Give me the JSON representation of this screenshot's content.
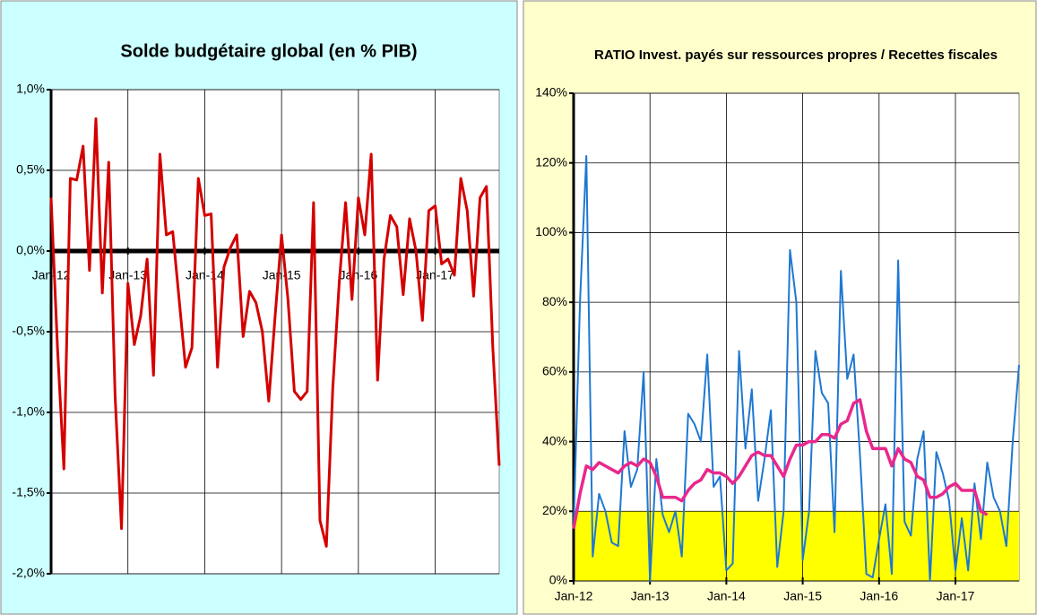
{
  "chart_data": [
    {
      "type": "line",
      "title": "Solde budgétaire global (en % PIB)",
      "categories": [
        "Jan-12",
        null,
        null,
        null,
        null,
        null,
        null,
        null,
        null,
        null,
        null,
        null,
        "Jan-13",
        null,
        null,
        null,
        null,
        null,
        null,
        null,
        null,
        null,
        null,
        null,
        "Jan-14",
        null,
        null,
        null,
        null,
        null,
        null,
        null,
        null,
        null,
        null,
        null,
        "Jan-15",
        null,
        null,
        null,
        null,
        null,
        null,
        null,
        null,
        null,
        null,
        null,
        "Jan-16",
        null,
        null,
        null,
        null,
        null,
        null,
        null,
        null,
        null,
        null,
        null,
        "Jan-17",
        null,
        null,
        null,
        null,
        null,
        null,
        null,
        null,
        null,
        null
      ],
      "series": [
        {
          "color": "#d40000",
          "values": [
            0.33,
            -0.6,
            -1.35,
            0.45,
            0.44,
            0.65,
            -0.12,
            0.82,
            -0.26,
            0.55,
            -0.9,
            -1.72,
            -0.2,
            -0.58,
            -0.4,
            -0.05,
            -0.77,
            0.6,
            0.1,
            0.12,
            -0.3,
            -0.72,
            -0.6,
            0.45,
            0.22,
            0.23,
            -0.72,
            -0.1,
            0.02,
            0.1,
            -0.53,
            -0.25,
            -0.32,
            -0.5,
            -0.93,
            -0.4,
            0.1,
            -0.3,
            -0.87,
            -0.92,
            -0.87,
            0.3,
            -1.67,
            -1.83,
            -0.85,
            -0.2,
            0.3,
            -0.3,
            0.33,
            0.1,
            0.6,
            -0.8,
            -0.05,
            0.22,
            0.15,
            -0.27,
            0.2,
            0.0,
            -0.43,
            0.25,
            0.28,
            -0.08,
            -0.05,
            -0.15,
            0.45,
            0.25,
            -0.28,
            0.33,
            0.4,
            -0.6,
            -1.33
          ]
        }
      ],
      "ylim": [
        -2,
        1
      ],
      "yticks": [
        {
          "value": -2,
          "label": "-2,0%"
        },
        {
          "value": -1.5,
          "label": "-1,5%"
        },
        {
          "value": -1,
          "label": "-1,0%"
        },
        {
          "value": -0.5,
          "label": "-0,5%"
        },
        {
          "value": 0,
          "label": "0,0%"
        },
        {
          "value": 0.5,
          "label": "0,5%"
        },
        {
          "value": 1,
          "label": "1,0%"
        }
      ],
      "grid": true,
      "background": "#ccffff"
    },
    {
      "type": "line",
      "title": "RATIO Invest. payés sur ressources propres / Recettes fiscales",
      "categories": [
        "Jan-12",
        null,
        null,
        null,
        null,
        null,
        null,
        null,
        null,
        null,
        null,
        null,
        "Jan-13",
        null,
        null,
        null,
        null,
        null,
        null,
        null,
        null,
        null,
        null,
        null,
        "Jan-14",
        null,
        null,
        null,
        null,
        null,
        null,
        null,
        null,
        null,
        null,
        null,
        "Jan-15",
        null,
        null,
        null,
        null,
        null,
        null,
        null,
        null,
        null,
        null,
        null,
        "Jan-16",
        null,
        null,
        null,
        null,
        null,
        null,
        null,
        null,
        null,
        null,
        null,
        "Jan-17",
        null,
        null,
        null,
        null,
        null,
        null,
        null,
        null,
        null,
        null
      ],
      "series": [
        {
          "color": "#1f78d2",
          "values": [
            15,
            80,
            122,
            7,
            25,
            20,
            11,
            10,
            43,
            27,
            32,
            60,
            0,
            35,
            19,
            14,
            20,
            7,
            48,
            45,
            40,
            65,
            27,
            30,
            3,
            5,
            66,
            38,
            55,
            23,
            35,
            49,
            4,
            20,
            95,
            80,
            6,
            20,
            66,
            54,
            51,
            14,
            89,
            58,
            65,
            36,
            2,
            1,
            12,
            22,
            2,
            92,
            17,
            13,
            35,
            43,
            0,
            37,
            31,
            23,
            3,
            18,
            3,
            28,
            12,
            34,
            24,
            20,
            10,
            40,
            62
          ]
        },
        {
          "color": "#e8288c",
          "values": [
            15,
            25,
            33,
            32,
            34,
            33,
            32,
            31,
            33,
            34,
            33,
            35,
            34,
            30,
            24,
            24,
            24,
            23,
            26,
            28,
            29,
            32,
            31,
            31,
            30,
            28,
            30,
            33,
            36,
            37,
            36,
            36,
            33,
            30,
            35,
            39,
            39,
            40,
            40,
            42,
            42,
            41,
            45,
            46,
            51,
            52,
            43,
            38,
            38,
            38,
            33,
            38,
            35,
            34,
            30,
            29,
            24,
            24,
            25,
            27,
            28,
            26,
            26,
            26,
            20,
            19,
            null,
            null,
            null,
            null,
            null
          ]
        }
      ],
      "ylim": [
        0,
        140
      ],
      "yticks": [
        {
          "value": 0,
          "label": "0%"
        },
        {
          "value": 20,
          "label": "20%"
        },
        {
          "value": 40,
          "label": "40%"
        },
        {
          "value": 60,
          "label": "60%"
        },
        {
          "value": 80,
          "label": "80%"
        },
        {
          "value": 100,
          "label": "100%"
        },
        {
          "value": 120,
          "label": "120%"
        },
        {
          "value": 140,
          "label": "140%"
        }
      ],
      "band": [
        0,
        20
      ],
      "band_color": "#ffff00",
      "grid": true,
      "background": "#ffffcc"
    }
  ]
}
